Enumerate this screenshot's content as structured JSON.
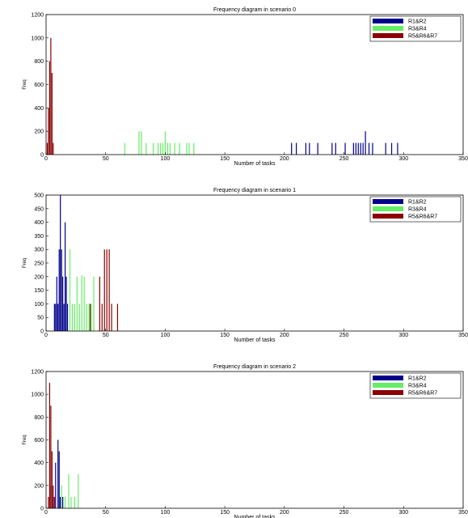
{
  "chart_data": [
    {
      "type": "bar",
      "title": "Frequency diagram in scenario 0",
      "xlabel": "Number of tasks",
      "ylabel": "Freq",
      "xlim": [
        0,
        350
      ],
      "ylim": [
        0,
        1200
      ],
      "xticks": [
        "0",
        "50",
        "100",
        "150",
        "200",
        "250",
        "300",
        "350"
      ],
      "yticks": [
        "0",
        "200",
        "400",
        "600",
        "800",
        "1000",
        "1200"
      ],
      "grid": false,
      "legend_position": "top-right",
      "series": [
        {
          "name": "R1&R2",
          "color": "#00008b",
          "x": [
            206,
            210,
            218,
            221,
            228,
            240,
            243,
            251,
            258,
            260,
            262,
            264,
            266,
            268,
            271,
            274,
            285,
            290,
            295
          ],
          "values": [
            100,
            100,
            100,
            100,
            100,
            100,
            100,
            100,
            100,
            100,
            100,
            100,
            100,
            200,
            100,
            100,
            100,
            100,
            100
          ]
        },
        {
          "name": "R3&R4",
          "color": "#66ee66",
          "x": [
            66,
            78,
            80,
            84,
            90,
            94,
            96,
            98,
            100,
            102,
            104,
            108,
            112,
            118,
            120,
            124
          ],
          "values": [
            100,
            200,
            200,
            100,
            100,
            100,
            100,
            100,
            200,
            100,
            100,
            100,
            100,
            100,
            100,
            100
          ]
        },
        {
          "name": "R5&R6&R7",
          "color": "#8b0000",
          "x": [
            1,
            2,
            3,
            4,
            5,
            6
          ],
          "values": [
            100,
            400,
            800,
            1000,
            700,
            100
          ]
        }
      ]
    },
    {
      "type": "bar",
      "title": "Frequency diagram in scenario 1",
      "xlabel": "Number of tasks",
      "ylabel": "Freq",
      "xlim": [
        0,
        350
      ],
      "ylim": [
        0,
        500
      ],
      "xticks": [
        "0",
        "50",
        "100",
        "150",
        "200",
        "250",
        "300",
        "350"
      ],
      "yticks": [
        "0",
        "50",
        "100",
        "150",
        "200",
        "250",
        "300",
        "350",
        "400",
        "450",
        "500"
      ],
      "grid": false,
      "legend_position": "top-right",
      "series": [
        {
          "name": "R1&R2",
          "color": "#00008b",
          "x": [
            7,
            8,
            9,
            10,
            11,
            12,
            13,
            14,
            15,
            16,
            17,
            18
          ],
          "values": [
            100,
            100,
            200,
            100,
            300,
            500,
            300,
            200,
            100,
            400,
            200,
            100
          ]
        },
        {
          "name": "R3&R4",
          "color": "#66ee66",
          "x": [
            20,
            22,
            24,
            26,
            28,
            30,
            32,
            34,
            36,
            38,
            40
          ],
          "values": [
            300,
            100,
            100,
            200,
            100,
            205,
            200,
            100,
            100,
            100,
            200
          ]
        },
        {
          "name": "R5&R6&R7",
          "color": "#8b0000",
          "x": [
            37,
            45,
            47,
            49,
            51,
            53,
            55,
            60
          ],
          "values": [
            100,
            200,
            100,
            300,
            300,
            300,
            100,
            100
          ]
        }
      ]
    },
    {
      "type": "bar",
      "title": "Frequency diagram in scenario 2",
      "xlabel": "Number of tasks",
      "ylabel": "Freq",
      "xlim": [
        0,
        350
      ],
      "ylim": [
        0,
        1200
      ],
      "xticks": [
        "0",
        "50",
        "100",
        "150",
        "200",
        "250",
        "300",
        "350"
      ],
      "yticks": [
        "0",
        "200",
        "400",
        "600",
        "800",
        "1000",
        "1200"
      ],
      "grid": false,
      "legend_position": "top-right",
      "series": [
        {
          "name": "R1&R2",
          "color": "#00008b",
          "x": [
            4,
            6,
            8,
            10,
            11,
            12,
            14
          ],
          "values": [
            200,
            100,
            400,
            600,
            500,
            100,
            100
          ]
        },
        {
          "name": "R3&R4",
          "color": "#66ee66",
          "x": [
            13,
            16,
            19,
            21,
            24,
            27
          ],
          "values": [
            200,
            100,
            300,
            100,
            100,
            300
          ]
        },
        {
          "name": "R5&R6&R7",
          "color": "#8b0000",
          "x": [
            2,
            3,
            4,
            5,
            6,
            7
          ],
          "values": [
            100,
            1100,
            900,
            500,
            200,
            100
          ]
        }
      ]
    }
  ]
}
